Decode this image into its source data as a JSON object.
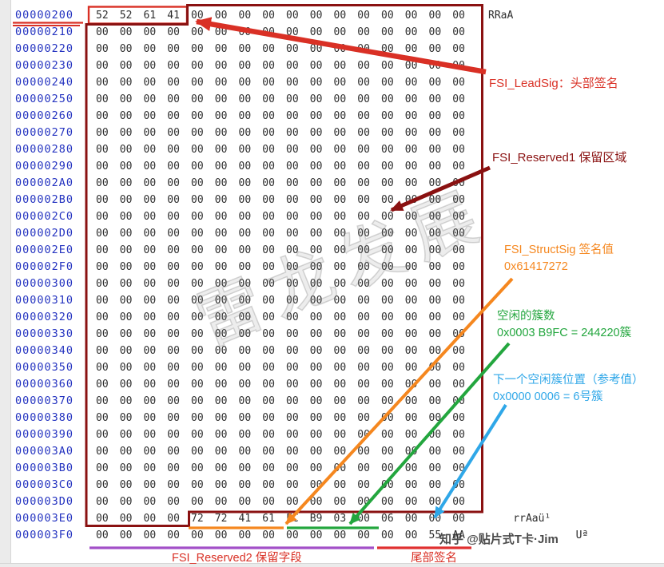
{
  "hex_editor": {
    "address_color": "#2433c0",
    "rows": [
      {
        "addr": "00000200",
        "bytes": "52 52 61 41 00 00 00 00 00 00 00 00 00 00 00 00",
        "ascii": "RRaA"
      },
      {
        "addr": "00000210",
        "bytes": "00 00 00 00 00 00 00 00 00 00 00 00 00 00 00 00",
        "ascii": ""
      },
      {
        "addr": "00000220",
        "bytes": "00 00 00 00 00 00 00 00 00 00 00 00 00 00 00 00",
        "ascii": ""
      },
      {
        "addr": "00000230",
        "bytes": "00 00 00 00 00 00 00 00 00 00 00 00 00 00 00 00",
        "ascii": ""
      },
      {
        "addr": "00000240",
        "bytes": "00 00 00 00 00 00 00 00 00 00 00 00 00 00 00 00",
        "ascii": ""
      },
      {
        "addr": "00000250",
        "bytes": "00 00 00 00 00 00 00 00 00 00 00 00 00 00 00 00",
        "ascii": ""
      },
      {
        "addr": "00000260",
        "bytes": "00 00 00 00 00 00 00 00 00 00 00 00 00 00 00 00",
        "ascii": ""
      },
      {
        "addr": "00000270",
        "bytes": "00 00 00 00 00 00 00 00 00 00 00 00 00 00 00 00",
        "ascii": ""
      },
      {
        "addr": "00000280",
        "bytes": "00 00 00 00 00 00 00 00 00 00 00 00 00 00 00 00",
        "ascii": ""
      },
      {
        "addr": "00000290",
        "bytes": "00 00 00 00 00 00 00 00 00 00 00 00 00 00 00 00",
        "ascii": ""
      },
      {
        "addr": "000002A0",
        "bytes": "00 00 00 00 00 00 00 00 00 00 00 00 00 00 00 00",
        "ascii": ""
      },
      {
        "addr": "000002B0",
        "bytes": "00 00 00 00 00 00 00 00 00 00 00 00 00 00 00 00",
        "ascii": ""
      },
      {
        "addr": "000002C0",
        "bytes": "00 00 00 00 00 00 00 00 00 00 00 00 00 00 00 00",
        "ascii": ""
      },
      {
        "addr": "000002D0",
        "bytes": "00 00 00 00 00 00 00 00 00 00 00 00 00 00 00 00",
        "ascii": ""
      },
      {
        "addr": "000002E0",
        "bytes": "00 00 00 00 00 00 00 00 00 00 00 00 00 00 00 00",
        "ascii": ""
      },
      {
        "addr": "000002F0",
        "bytes": "00 00 00 00 00 00 00 00 00 00 00 00 00 00 00 00",
        "ascii": ""
      },
      {
        "addr": "00000300",
        "bytes": "00 00 00 00 00 00 00 00 00 00 00 00 00 00 00 00",
        "ascii": ""
      },
      {
        "addr": "00000310",
        "bytes": "00 00 00 00 00 00 00 00 00 00 00 00 00 00 00 00",
        "ascii": ""
      },
      {
        "addr": "00000320",
        "bytes": "00 00 00 00 00 00 00 00 00 00 00 00 00 00 00 00",
        "ascii": ""
      },
      {
        "addr": "00000330",
        "bytes": "00 00 00 00 00 00 00 00 00 00 00 00 00 00 00 00",
        "ascii": ""
      },
      {
        "addr": "00000340",
        "bytes": "00 00 00 00 00 00 00 00 00 00 00 00 00 00 00 00",
        "ascii": ""
      },
      {
        "addr": "00000350",
        "bytes": "00 00 00 00 00 00 00 00 00 00 00 00 00 00 00 00",
        "ascii": ""
      },
      {
        "addr": "00000360",
        "bytes": "00 00 00 00 00 00 00 00 00 00 00 00 00 00 00 00",
        "ascii": ""
      },
      {
        "addr": "00000370",
        "bytes": "00 00 00 00 00 00 00 00 00 00 00 00 00 00 00 00",
        "ascii": ""
      },
      {
        "addr": "00000380",
        "bytes": "00 00 00 00 00 00 00 00 00 00 00 00 00 00 00 00",
        "ascii": ""
      },
      {
        "addr": "00000390",
        "bytes": "00 00 00 00 00 00 00 00 00 00 00 00 00 00 00 00",
        "ascii": ""
      },
      {
        "addr": "000003A0",
        "bytes": "00 00 00 00 00 00 00 00 00 00 00 00 00 00 00 00",
        "ascii": ""
      },
      {
        "addr": "000003B0",
        "bytes": "00 00 00 00 00 00 00 00 00 00 00 00 00 00 00 00",
        "ascii": ""
      },
      {
        "addr": "000003C0",
        "bytes": "00 00 00 00 00 00 00 00 00 00 00 00 00 00 00 00",
        "ascii": ""
      },
      {
        "addr": "000003D0",
        "bytes": "00 00 00 00 00 00 00 00 00 00 00 00 00 00 00 00",
        "ascii": ""
      },
      {
        "addr": "000003E0",
        "bytes": "00 00 00 00 72 72 41 61 FC B9 03 00 06 00 00 00",
        "ascii": "    rrAaü¹"
      },
      {
        "addr": "000003F0",
        "bytes": "00 00 00 00 00 00 00 00 00 00 00 00 00 00 55 AA",
        "ascii": "              Uª"
      }
    ]
  },
  "annotations": {
    "lead_sig": {
      "text": "FSI_LeadSig：头部签名",
      "color": "#d93025"
    },
    "reserved1": {
      "text": "FSI_Reserved1 保留区域",
      "color": "#8a1111"
    },
    "struct_sig": {
      "title": "FSI_StructSig 签名值",
      "value": "0x61417272",
      "color": "#f5871f"
    },
    "free_clusters": {
      "title": "空闲的簇数",
      "value": "0x0003 B9FC = 244220簇",
      "color": "#23a63e"
    },
    "next_free_cluster": {
      "title": "下一个空闲簇位置（参考值）",
      "value": "0x0000 0006 = 6号簇",
      "color": "#2fa7e8"
    },
    "reserved2": {
      "text": "FSI_Reserved2 保留字段",
      "color": "#d93025",
      "line_color": "#a24fc8"
    },
    "trail_sig": {
      "text": "尾部签名",
      "color": "#d93025",
      "line_color": "#e03030"
    }
  },
  "watermarks": {
    "diagonal": "雷龙发展",
    "credit": "知乎 @贴片式T卡·Jim"
  }
}
